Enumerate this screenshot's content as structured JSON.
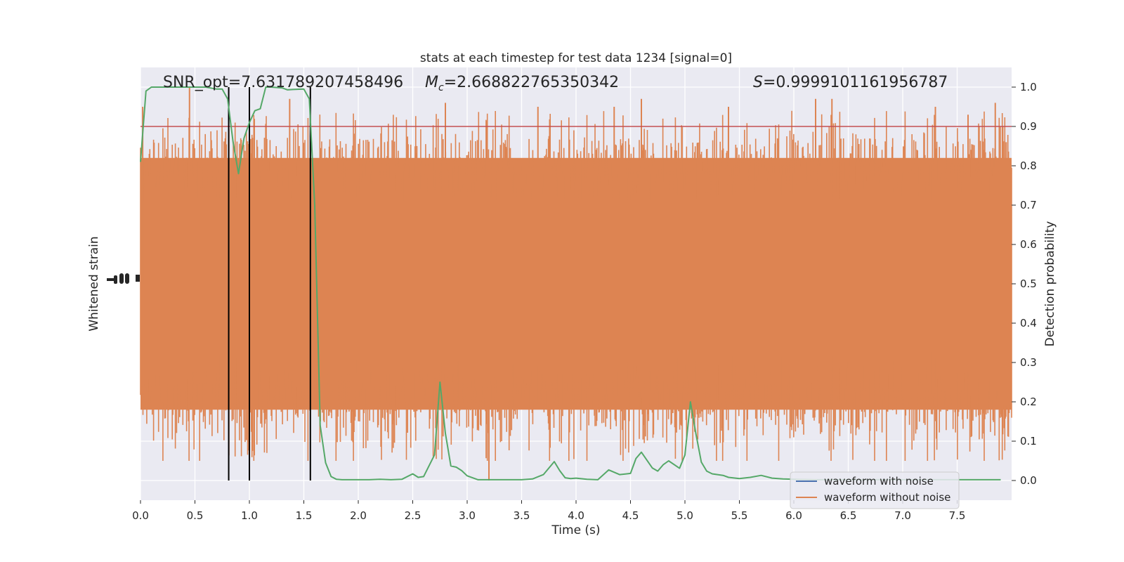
{
  "chart_data": {
    "type": "line",
    "title": "stats at each timestep for test data 1234 [signal=0]",
    "xlabel": "Time (s)",
    "ylabel_left": "Whitened strain",
    "ylabel_right": "Detection probability",
    "xlim": [
      0.0,
      8.0
    ],
    "ylim_right": [
      -0.05,
      1.05
    ],
    "x_ticks": [
      0.0,
      0.5,
      1.0,
      1.5,
      2.0,
      2.5,
      3.0,
      3.5,
      4.0,
      4.5,
      5.0,
      5.5,
      6.0,
      6.5,
      7.0,
      7.5
    ],
    "x_tick_labels": [
      "0.0",
      "0.5",
      "1.0",
      "1.5",
      "2.0",
      "2.5",
      "3.0",
      "3.5",
      "4.0",
      "4.5",
      "5.0",
      "5.5",
      "6.0",
      "6.5",
      "7.0",
      "7.5"
    ],
    "y_ticks_right": [
      0.0,
      0.1,
      0.2,
      0.3,
      0.4,
      0.5,
      0.6,
      0.7,
      0.8,
      0.9,
      1.0
    ],
    "y_tick_labels_right": [
      "0.0",
      "0.1",
      "0.2",
      "0.3",
      "0.4",
      "0.5",
      "0.6",
      "0.7",
      "0.8",
      "0.9",
      "1.0"
    ],
    "grid": true,
    "annotations": {
      "snr_text": "SNR_opt=7.631789207458496",
      "mc_symbol": "M",
      "mc_subscript": "c",
      "mc_value": "=2.668822765350342",
      "s_symbol": "S",
      "s_value": "=0.9999101161956787"
    },
    "threshold": {
      "value": 0.9,
      "color": "#c44e52"
    },
    "vertical_lines_x": [
      0.81,
      1.0,
      1.56
    ],
    "legend": {
      "position": "lower-right",
      "entries": [
        {
          "label": "waveform with noise",
          "color": "#4c72b0"
        },
        {
          "label": "waveform without noise",
          "color": "#dd8452"
        }
      ]
    },
    "noise_series": {
      "name": "waveform without noise",
      "color": "#dd8452",
      "x_range": [
        0.0,
        8.0
      ],
      "band_center": 0.5,
      "core_half_width": 0.32,
      "spike_extent": 0.95,
      "spike_x": [
        0.02,
        0.45,
        1.37,
        2.8,
        3.2,
        3.65,
        4.35,
        4.6,
        5.4,
        6.2,
        6.35,
        7.3,
        7.6,
        7.85,
        7.95
      ],
      "spike_y": [
        0.95,
        1.0,
        0.97,
        0.96,
        0.0,
        0.95,
        0.95,
        0.97,
        0.95,
        0.97,
        0.97,
        0.95,
        0.93,
        0.96,
        0.86
      ]
    },
    "detection_probability": {
      "name": "Detection probability",
      "color": "#55a868",
      "x": [
        0.0,
        0.05,
        0.1,
        0.15,
        0.2,
        0.3,
        0.4,
        0.5,
        0.6,
        0.7,
        0.75,
        0.8,
        0.85,
        0.9,
        0.95,
        1.0,
        1.05,
        1.1,
        1.15,
        1.2,
        1.3,
        1.35,
        1.4,
        1.5,
        1.55,
        1.6,
        1.65,
        1.7,
        1.75,
        1.8,
        1.85,
        1.9,
        2.0,
        2.1,
        2.2,
        2.3,
        2.4,
        2.5,
        2.55,
        2.6,
        2.7,
        2.75,
        2.8,
        2.85,
        2.9,
        2.95,
        3.0,
        3.1,
        3.2,
        3.3,
        3.4,
        3.5,
        3.6,
        3.7,
        3.8,
        3.85,
        3.9,
        3.95,
        4.0,
        4.1,
        4.2,
        4.3,
        4.4,
        4.5,
        4.55,
        4.6,
        4.7,
        4.75,
        4.8,
        4.85,
        4.95,
        5.0,
        5.05,
        5.1,
        5.15,
        5.2,
        5.25,
        5.3,
        5.35,
        5.4,
        5.5,
        5.6,
        5.7,
        5.8,
        5.9,
        6.0,
        6.2,
        6.5,
        7.0,
        7.5,
        7.9
      ],
      "y": [
        0.81,
        0.99,
        1.0,
        1.0,
        1.0,
        1.0,
        1.0,
        1.0,
        1.0,
        0.995,
        0.995,
        0.97,
        0.86,
        0.78,
        0.87,
        0.91,
        0.94,
        0.945,
        1.0,
        1.0,
        0.998,
        0.993,
        0.994,
        0.995,
        0.97,
        0.7,
        0.14,
        0.045,
        0.01,
        0.003,
        0.002,
        0.002,
        0.002,
        0.002,
        0.003,
        0.002,
        0.003,
        0.017,
        0.008,
        0.01,
        0.065,
        0.25,
        0.12,
        0.037,
        0.034,
        0.025,
        0.012,
        0.002,
        0.002,
        0.002,
        0.002,
        0.002,
        0.004,
        0.015,
        0.048,
        0.025,
        0.007,
        0.005,
        0.006,
        0.003,
        0.002,
        0.027,
        0.015,
        0.018,
        0.056,
        0.072,
        0.032,
        0.024,
        0.04,
        0.05,
        0.031,
        0.065,
        0.2,
        0.12,
        0.047,
        0.024,
        0.017,
        0.015,
        0.013,
        0.008,
        0.005,
        0.008,
        0.013,
        0.006,
        0.004,
        0.003,
        0.002,
        0.002,
        0.002,
        0.002,
        0.002
      ]
    }
  }
}
